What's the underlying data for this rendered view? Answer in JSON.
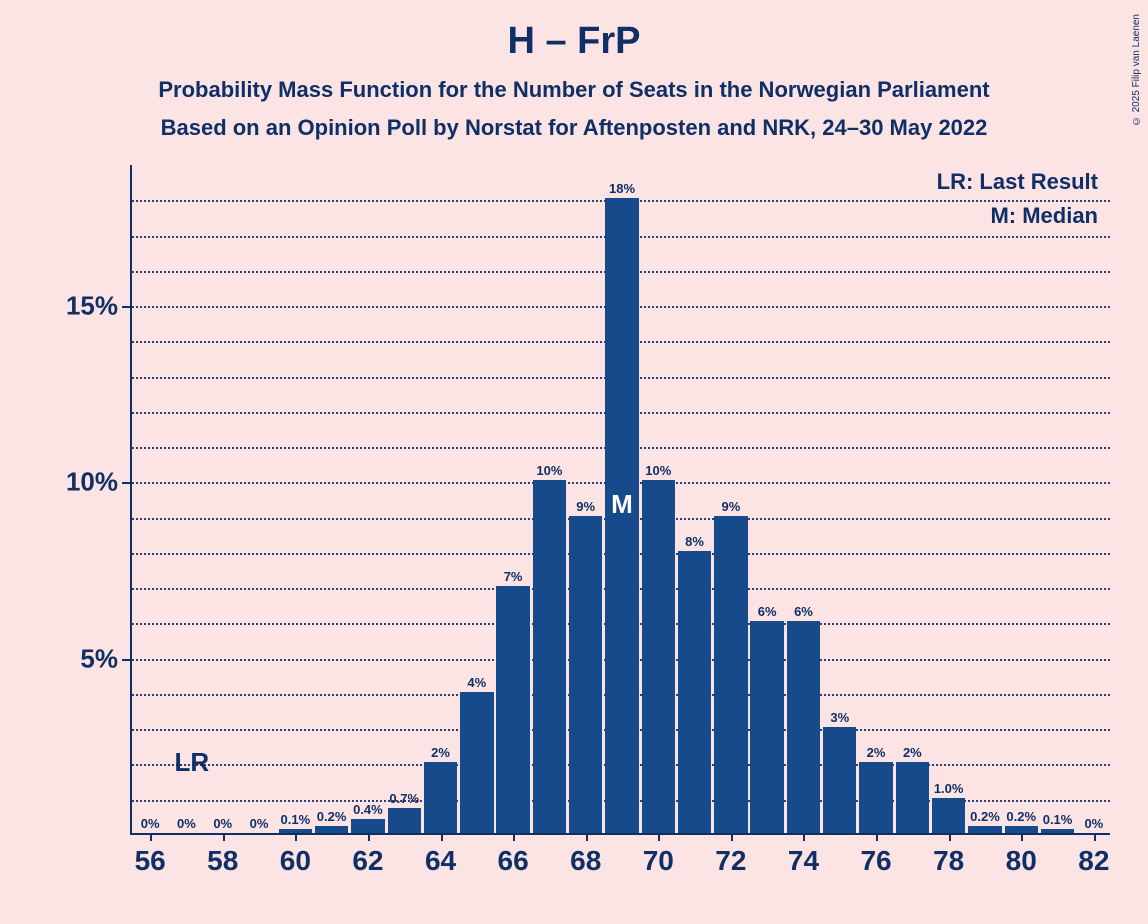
{
  "title": "H – FrP",
  "subtitle1": "Probability Mass Function for the Number of Seats in the Norwegian Parliament",
  "subtitle2": "Based on an Opinion Poll by Norstat for Aftenposten and NRK, 24–30 May 2022",
  "copyright": "© 2025 Filip van Laenen",
  "legend": {
    "lr": "LR: Last Result",
    "m": "M: Median"
  },
  "chart": {
    "type": "bar",
    "background_color": "#fce4e4",
    "bar_color": "#174a8b",
    "axis_color": "#0f2f66",
    "grid_color": "#0f2f66",
    "text_color": "#0f2f66",
    "median_text_color": "#ffffff",
    "ylim": [
      0,
      19
    ],
    "ytick_major": [
      5,
      10,
      15
    ],
    "ytick_minor_step": 1,
    "y_label_suffix": "%",
    "xlim": [
      55.5,
      82.5
    ],
    "x_categories": [
      56,
      57,
      58,
      59,
      60,
      61,
      62,
      63,
      64,
      65,
      66,
      67,
      68,
      69,
      70,
      71,
      72,
      73,
      74,
      75,
      76,
      77,
      78,
      79,
      80,
      81,
      82
    ],
    "x_tick_labels": [
      56,
      58,
      60,
      62,
      64,
      66,
      68,
      70,
      72,
      74,
      76,
      78,
      80,
      82
    ],
    "bar_width": 0.92,
    "values": [
      0,
      0,
      0,
      0,
      0.1,
      0.2,
      0.4,
      0.7,
      2,
      4,
      7,
      10,
      9,
      18,
      10,
      8,
      9,
      6,
      6,
      3,
      2,
      2,
      1.0,
      0.2,
      0.2,
      0.1,
      0
    ],
    "value_labels": [
      "0%",
      "0%",
      "0%",
      "0%",
      "0.1%",
      "0.2%",
      "0.4%",
      "0.7%",
      "2%",
      "4%",
      "7%",
      "10%",
      "9%",
      "18%",
      "10%",
      "8%",
      "9%",
      "6%",
      "6%",
      "3%",
      "2%",
      "2%",
      "1.0%",
      "0.2%",
      "0.2%",
      "0.1%",
      "0%"
    ],
    "median_x": 69,
    "median_label": "M",
    "lr_x": 57,
    "lr_label": "LR",
    "title_fontsize": 38,
    "subtitle_fontsize": 22,
    "ylabel_fontsize": 26,
    "xlabel_fontsize": 28,
    "barlabel_fontsize": 13,
    "legend_fontsize": 22
  }
}
